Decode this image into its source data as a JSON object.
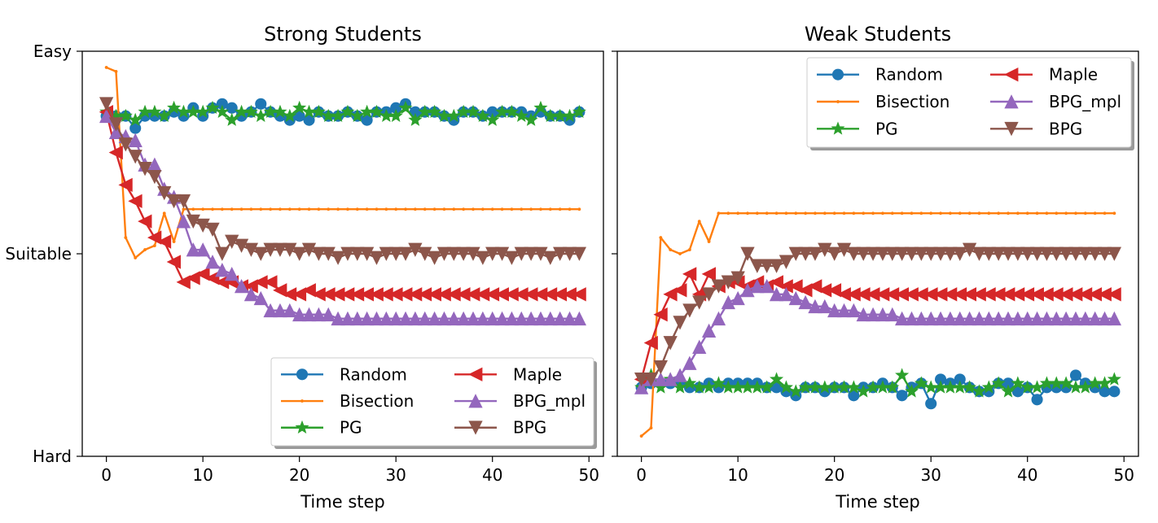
{
  "chart_data": [
    {
      "type": "line",
      "title": "Strong Students",
      "xlabel": "Time step",
      "ylabel": "",
      "xlim": [
        -2.5,
        51.5
      ],
      "ylim": [
        0,
        1
      ],
      "x_ticks": [
        0,
        10,
        20,
        30,
        40,
        50
      ],
      "y_ticks": [
        {
          "value": 0,
          "label": "Hard"
        },
        {
          "value": 0.5,
          "label": "Suitable"
        },
        {
          "value": 1,
          "label": "Easy"
        }
      ],
      "legend": {
        "position": "lower-right",
        "columns": 2
      },
      "series": [
        {
          "name": "Random",
          "color": "#1f77b4",
          "marker": "circle",
          "values": [
            0.84,
            0.84,
            0.84,
            0.81,
            0.84,
            0.84,
            0.84,
            0.85,
            0.84,
            0.86,
            0.84,
            0.86,
            0.87,
            0.86,
            0.84,
            0.85,
            0.87,
            0.85,
            0.84,
            0.83,
            0.84,
            0.83,
            0.85,
            0.84,
            0.84,
            0.85,
            0.84,
            0.83,
            0.85,
            0.85,
            0.86,
            0.87,
            0.85,
            0.85,
            0.85,
            0.84,
            0.83,
            0.85,
            0.85,
            0.84,
            0.85,
            0.85,
            0.85,
            0.85,
            0.84,
            0.85,
            0.84,
            0.84,
            0.83,
            0.85
          ]
        },
        {
          "name": "Bisection",
          "color": "#ff7f0e",
          "marker": "dot",
          "values": [
            0.96,
            0.95,
            0.54,
            0.49,
            0.51,
            0.52,
            0.6,
            0.53,
            0.61,
            0.61,
            0.61,
            0.61,
            0.61,
            0.61,
            0.61,
            0.61,
            0.61,
            0.61,
            0.61,
            0.61,
            0.61,
            0.61,
            0.61,
            0.61,
            0.61,
            0.61,
            0.61,
            0.61,
            0.61,
            0.61,
            0.61,
            0.61,
            0.61,
            0.61,
            0.61,
            0.61,
            0.61,
            0.61,
            0.61,
            0.61,
            0.61,
            0.61,
            0.61,
            0.61,
            0.61,
            0.61,
            0.61,
            0.61,
            0.61,
            0.61
          ]
        },
        {
          "name": "PG",
          "color": "#2ca02c",
          "marker": "star",
          "values": [
            0.85,
            0.84,
            0.84,
            0.83,
            0.85,
            0.85,
            0.84,
            0.86,
            0.85,
            0.85,
            0.85,
            0.86,
            0.85,
            0.83,
            0.85,
            0.85,
            0.84,
            0.85,
            0.85,
            0.84,
            0.86,
            0.85,
            0.85,
            0.84,
            0.84,
            0.85,
            0.84,
            0.85,
            0.85,
            0.84,
            0.84,
            0.86,
            0.83,
            0.85,
            0.85,
            0.84,
            0.84,
            0.85,
            0.85,
            0.84,
            0.83,
            0.85,
            0.85,
            0.84,
            0.83,
            0.86,
            0.84,
            0.84,
            0.84,
            0.85
          ]
        },
        {
          "name": "Maple",
          "color": "#d62728",
          "marker": "triangle-left",
          "values": [
            0.85,
            0.75,
            0.67,
            0.63,
            0.58,
            0.54,
            0.53,
            0.48,
            0.43,
            0.44,
            0.45,
            0.44,
            0.43,
            0.43,
            0.42,
            0.42,
            0.43,
            0.43,
            0.41,
            0.4,
            0.4,
            0.41,
            0.4,
            0.4,
            0.4,
            0.4,
            0.4,
            0.4,
            0.4,
            0.4,
            0.4,
            0.4,
            0.4,
            0.4,
            0.4,
            0.4,
            0.4,
            0.4,
            0.4,
            0.4,
            0.4,
            0.4,
            0.4,
            0.4,
            0.4,
            0.4,
            0.4,
            0.4,
            0.4,
            0.4
          ]
        },
        {
          "name": "BPG_mpl",
          "color": "#9467bd",
          "marker": "triangle-up",
          "values": [
            0.84,
            0.8,
            0.79,
            0.78,
            0.72,
            0.72,
            0.66,
            0.64,
            0.58,
            0.51,
            0.51,
            0.48,
            0.46,
            0.45,
            0.42,
            0.4,
            0.39,
            0.36,
            0.36,
            0.36,
            0.35,
            0.35,
            0.35,
            0.35,
            0.34,
            0.34,
            0.34,
            0.34,
            0.34,
            0.34,
            0.34,
            0.34,
            0.34,
            0.34,
            0.34,
            0.34,
            0.34,
            0.34,
            0.34,
            0.34,
            0.34,
            0.34,
            0.34,
            0.34,
            0.34,
            0.34,
            0.34,
            0.34,
            0.34,
            0.34
          ]
        },
        {
          "name": "BPG",
          "color": "#8c564b",
          "marker": "triangle-down",
          "values": [
            0.87,
            0.82,
            0.77,
            0.74,
            0.71,
            0.69,
            0.65,
            0.63,
            0.63,
            0.58,
            0.57,
            0.56,
            0.5,
            0.53,
            0.52,
            0.51,
            0.5,
            0.51,
            0.51,
            0.51,
            0.5,
            0.51,
            0.5,
            0.5,
            0.49,
            0.5,
            0.5,
            0.5,
            0.49,
            0.5,
            0.5,
            0.5,
            0.51,
            0.5,
            0.49,
            0.5,
            0.5,
            0.5,
            0.5,
            0.49,
            0.5,
            0.5,
            0.49,
            0.5,
            0.5,
            0.5,
            0.49,
            0.5,
            0.5,
            0.5
          ]
        }
      ]
    },
    {
      "type": "line",
      "title": "Weak Students",
      "xlabel": "Time step",
      "ylabel": "",
      "xlim": [
        -2.5,
        51.5
      ],
      "ylim": [
        0,
        1
      ],
      "x_ticks": [
        0,
        10,
        20,
        30,
        40,
        50
      ],
      "y_ticks": [
        {
          "value": 0,
          "label": ""
        },
        {
          "value": 0.5,
          "label": ""
        },
        {
          "value": 1,
          "label": ""
        }
      ],
      "legend": {
        "position": "top-right",
        "columns": 2
      },
      "series": [
        {
          "name": "Random",
          "color": "#1f77b4",
          "marker": "circle",
          "values": [
            0.17,
            0.18,
            0.18,
            0.18,
            0.18,
            0.17,
            0.17,
            0.18,
            0.17,
            0.18,
            0.18,
            0.18,
            0.18,
            0.17,
            0.17,
            0.16,
            0.15,
            0.17,
            0.17,
            0.16,
            0.17,
            0.17,
            0.15,
            0.17,
            0.17,
            0.18,
            0.17,
            0.15,
            0.17,
            0.18,
            0.13,
            0.19,
            0.18,
            0.19,
            0.17,
            0.16,
            0.16,
            0.18,
            0.18,
            0.16,
            0.17,
            0.14,
            0.17,
            0.17,
            0.17,
            0.2,
            0.18,
            0.17,
            0.16,
            0.16
          ]
        },
        {
          "name": "Bisection",
          "color": "#ff7f0e",
          "marker": "dot",
          "values": [
            0.05,
            0.07,
            0.54,
            0.51,
            0.5,
            0.51,
            0.58,
            0.53,
            0.6,
            0.6,
            0.6,
            0.6,
            0.6,
            0.6,
            0.6,
            0.6,
            0.6,
            0.6,
            0.6,
            0.6,
            0.6,
            0.6,
            0.6,
            0.6,
            0.6,
            0.6,
            0.6,
            0.6,
            0.6,
            0.6,
            0.6,
            0.6,
            0.6,
            0.6,
            0.6,
            0.6,
            0.6,
            0.6,
            0.6,
            0.6,
            0.6,
            0.6,
            0.6,
            0.6,
            0.6,
            0.6,
            0.6,
            0.6,
            0.6,
            0.6
          ]
        },
        {
          "name": "PG",
          "color": "#2ca02c",
          "marker": "star",
          "values": [
            0.17,
            0.2,
            0.17,
            0.19,
            0.17,
            0.18,
            0.17,
            0.17,
            0.18,
            0.17,
            0.17,
            0.17,
            0.17,
            0.17,
            0.19,
            0.17,
            0.16,
            0.17,
            0.17,
            0.17,
            0.17,
            0.17,
            0.17,
            0.16,
            0.17,
            0.17,
            0.17,
            0.2,
            0.16,
            0.18,
            0.17,
            0.17,
            0.17,
            0.17,
            0.17,
            0.16,
            0.17,
            0.18,
            0.16,
            0.18,
            0.17,
            0.17,
            0.18,
            0.18,
            0.18,
            0.17,
            0.17,
            0.18,
            0.18,
            0.19
          ]
        },
        {
          "name": "Maple",
          "color": "#d62728",
          "marker": "triangle-left",
          "values": [
            0.19,
            0.28,
            0.35,
            0.4,
            0.41,
            0.45,
            0.4,
            0.45,
            0.42,
            0.43,
            0.43,
            0.42,
            0.43,
            0.42,
            0.43,
            0.42,
            0.42,
            0.41,
            0.42,
            0.41,
            0.41,
            0.4,
            0.4,
            0.4,
            0.4,
            0.4,
            0.4,
            0.4,
            0.4,
            0.4,
            0.4,
            0.4,
            0.4,
            0.4,
            0.4,
            0.4,
            0.4,
            0.4,
            0.4,
            0.4,
            0.4,
            0.4,
            0.4,
            0.4,
            0.4,
            0.4,
            0.4,
            0.4,
            0.4,
            0.4
          ]
        },
        {
          "name": "BPG_mpl",
          "color": "#9467bd",
          "marker": "triangle-up",
          "values": [
            0.17,
            0.19,
            0.19,
            0.19,
            0.2,
            0.23,
            0.27,
            0.31,
            0.34,
            0.38,
            0.39,
            0.41,
            0.42,
            0.42,
            0.4,
            0.4,
            0.39,
            0.38,
            0.37,
            0.37,
            0.36,
            0.36,
            0.36,
            0.35,
            0.35,
            0.35,
            0.35,
            0.34,
            0.34,
            0.34,
            0.34,
            0.34,
            0.34,
            0.34,
            0.34,
            0.34,
            0.34,
            0.34,
            0.34,
            0.34,
            0.34,
            0.34,
            0.34,
            0.34,
            0.34,
            0.34,
            0.34,
            0.34,
            0.34,
            0.34
          ]
        },
        {
          "name": "BPG",
          "color": "#8c564b",
          "marker": "triangle-down",
          "values": [
            0.19,
            0.19,
            0.22,
            0.28,
            0.33,
            0.36,
            0.38,
            0.4,
            0.42,
            0.43,
            0.44,
            0.5,
            0.47,
            0.47,
            0.47,
            0.48,
            0.5,
            0.5,
            0.5,
            0.51,
            0.5,
            0.51,
            0.5,
            0.5,
            0.5,
            0.5,
            0.5,
            0.5,
            0.5,
            0.5,
            0.5,
            0.5,
            0.5,
            0.5,
            0.51,
            0.5,
            0.5,
            0.5,
            0.5,
            0.5,
            0.5,
            0.5,
            0.5,
            0.5,
            0.5,
            0.5,
            0.5,
            0.5,
            0.5,
            0.5
          ]
        }
      ]
    }
  ]
}
